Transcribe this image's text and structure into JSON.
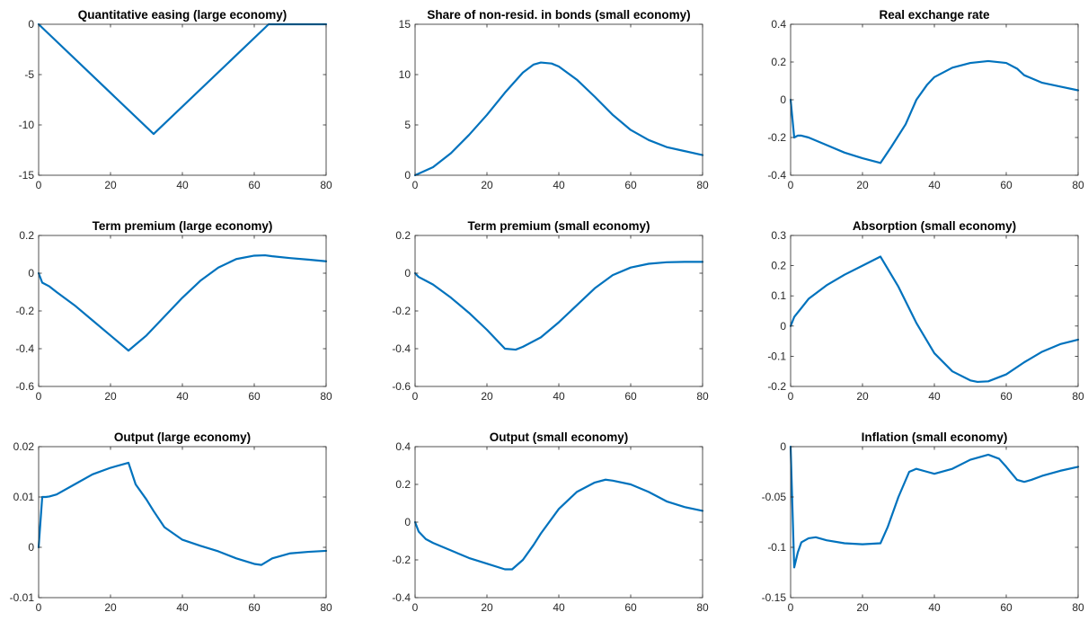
{
  "figure": {
    "line_color": "#0072BD",
    "grid": false,
    "layout": "3x3"
  },
  "chart_data": [
    {
      "type": "line",
      "title": "Quantitative easing (large economy)",
      "xlim": [
        0,
        80
      ],
      "ylim": [
        -15,
        0
      ],
      "xticks": [
        0,
        20,
        40,
        60,
        80
      ],
      "yticks": [
        -15,
        -10,
        -5,
        0
      ],
      "series": [
        {
          "x": [
            0,
            32,
            64,
            80
          ],
          "y": [
            0,
            -10.9,
            0,
            0
          ]
        }
      ]
    },
    {
      "type": "line",
      "title": "Share of non-resid. in bonds (small economy)",
      "xlim": [
        0,
        80
      ],
      "ylim": [
        0,
        15
      ],
      "xticks": [
        0,
        20,
        40,
        60,
        80
      ],
      "yticks": [
        0,
        5,
        10,
        15
      ],
      "series": [
        {
          "x": [
            0,
            5,
            10,
            15,
            20,
            25,
            30,
            33,
            35,
            38,
            40,
            45,
            50,
            55,
            60,
            65,
            70,
            75,
            80
          ],
          "y": [
            0,
            0.8,
            2.2,
            4.0,
            6.0,
            8.2,
            10.2,
            11.0,
            11.2,
            11.1,
            10.8,
            9.5,
            7.8,
            6.0,
            4.5,
            3.5,
            2.8,
            2.4,
            2.0
          ]
        }
      ]
    },
    {
      "type": "line",
      "title": "Real exchange rate",
      "xlim": [
        0,
        80
      ],
      "ylim": [
        -0.4,
        0.4
      ],
      "xticks": [
        0,
        20,
        40,
        60,
        80
      ],
      "yticks": [
        -0.4,
        -0.2,
        0,
        0.2,
        0.4
      ],
      "series": [
        {
          "x": [
            0,
            1,
            2,
            3,
            5,
            10,
            15,
            20,
            25,
            28,
            32,
            35,
            38,
            40,
            45,
            50,
            55,
            60,
            63,
            65,
            70,
            75,
            80
          ],
          "y": [
            0,
            -0.2,
            -0.19,
            -0.19,
            -0.2,
            -0.24,
            -0.28,
            -0.31,
            -0.335,
            -0.25,
            -0.13,
            0.0,
            0.08,
            0.12,
            0.17,
            0.195,
            0.205,
            0.195,
            0.165,
            0.13,
            0.09,
            0.07,
            0.05
          ]
        }
      ]
    },
    {
      "type": "line",
      "title": "Term premium (large economy)",
      "xlim": [
        0,
        80
      ],
      "ylim": [
        -0.6,
        0.2
      ],
      "xticks": [
        0,
        20,
        40,
        60,
        80
      ],
      "yticks": [
        -0.6,
        -0.4,
        -0.2,
        0,
        0.2
      ],
      "series": [
        {
          "x": [
            0,
            1,
            3,
            5,
            10,
            15,
            20,
            25,
            30,
            35,
            40,
            45,
            50,
            55,
            60,
            63,
            65,
            70,
            75,
            80
          ],
          "y": [
            0,
            -0.05,
            -0.07,
            -0.1,
            -0.17,
            -0.25,
            -0.33,
            -0.41,
            -0.33,
            -0.23,
            -0.13,
            -0.04,
            0.03,
            0.075,
            0.093,
            0.095,
            0.09,
            0.08,
            0.072,
            0.063
          ]
        }
      ]
    },
    {
      "type": "line",
      "title": "Term premium (small economy)",
      "xlim": [
        0,
        80
      ],
      "ylim": [
        -0.6,
        0.2
      ],
      "xticks": [
        0,
        20,
        40,
        60,
        80
      ],
      "yticks": [
        -0.6,
        -0.4,
        -0.2,
        0,
        0.2
      ],
      "series": [
        {
          "x": [
            0,
            1,
            3,
            5,
            10,
            15,
            20,
            25,
            28,
            30,
            35,
            40,
            45,
            50,
            55,
            60,
            65,
            70,
            75,
            80
          ],
          "y": [
            0,
            -0.02,
            -0.04,
            -0.06,
            -0.13,
            -0.21,
            -0.3,
            -0.4,
            -0.405,
            -0.39,
            -0.34,
            -0.26,
            -0.17,
            -0.08,
            -0.01,
            0.03,
            0.05,
            0.058,
            0.06,
            0.06
          ]
        }
      ]
    },
    {
      "type": "line",
      "title": "Absorption (small economy)",
      "xlim": [
        0,
        80
      ],
      "ylim": [
        -0.2,
        0.3
      ],
      "xticks": [
        0,
        20,
        40,
        60,
        80
      ],
      "yticks": [
        -0.2,
        -0.1,
        0,
        0.1,
        0.2,
        0.3
      ],
      "series": [
        {
          "x": [
            0,
            1,
            3,
            5,
            10,
            15,
            20,
            25,
            30,
            35,
            40,
            45,
            50,
            52,
            55,
            60,
            65,
            70,
            75,
            80
          ],
          "y": [
            0,
            0.03,
            0.06,
            0.09,
            0.135,
            0.17,
            0.2,
            0.23,
            0.13,
            0.01,
            -0.09,
            -0.15,
            -0.18,
            -0.185,
            -0.183,
            -0.16,
            -0.12,
            -0.085,
            -0.06,
            -0.045
          ]
        }
      ]
    },
    {
      "type": "line",
      "title": "Output (large economy)",
      "xlim": [
        0,
        80
      ],
      "ylim": [
        -0.01,
        0.02
      ],
      "xticks": [
        0,
        20,
        40,
        60,
        80
      ],
      "yticks": [
        -0.01,
        0,
        0.01,
        0.02
      ],
      "series": [
        {
          "x": [
            0,
            1,
            2,
            3,
            5,
            10,
            15,
            20,
            25,
            27,
            30,
            32,
            35,
            40,
            45,
            50,
            55,
            60,
            62,
            65,
            70,
            75,
            80
          ],
          "y": [
            0,
            0.01,
            0.01,
            0.0101,
            0.0105,
            0.0125,
            0.0145,
            0.0158,
            0.0168,
            0.0125,
            0.0095,
            0.0072,
            0.004,
            0.0015,
            0.0003,
            -0.0008,
            -0.0022,
            -0.0033,
            -0.0035,
            -0.0022,
            -0.0012,
            -0.0009,
            -0.0007
          ]
        }
      ]
    },
    {
      "type": "line",
      "title": "Output (small economy)",
      "xlim": [
        0,
        80
      ],
      "ylim": [
        -0.4,
        0.4
      ],
      "xticks": [
        0,
        20,
        40,
        60,
        80
      ],
      "yticks": [
        -0.4,
        -0.2,
        0,
        0.2,
        0.4
      ],
      "series": [
        {
          "x": [
            0,
            1,
            3,
            5,
            10,
            15,
            20,
            25,
            27,
            30,
            33,
            35,
            40,
            45,
            50,
            53,
            55,
            60,
            65,
            70,
            75,
            80
          ],
          "y": [
            0,
            -0.05,
            -0.09,
            -0.11,
            -0.15,
            -0.19,
            -0.22,
            -0.25,
            -0.25,
            -0.2,
            -0.12,
            -0.06,
            0.07,
            0.16,
            0.21,
            0.225,
            0.22,
            0.2,
            0.16,
            0.11,
            0.08,
            0.06
          ]
        }
      ]
    },
    {
      "type": "line",
      "title": "Inflation (small economy)",
      "xlim": [
        0,
        80
      ],
      "ylim": [
        -0.15,
        0
      ],
      "xticks": [
        0,
        20,
        40,
        60,
        80
      ],
      "yticks": [
        -0.15,
        -0.1,
        -0.05,
        0
      ],
      "series": [
        {
          "x": [
            0,
            1,
            2,
            3,
            5,
            7,
            10,
            15,
            20,
            25,
            27,
            30,
            33,
            35,
            38,
            40,
            45,
            50,
            55,
            58,
            60,
            63,
            65,
            67,
            70,
            75,
            80
          ],
          "y": [
            0,
            -0.12,
            -0.105,
            -0.095,
            -0.091,
            -0.09,
            -0.093,
            -0.096,
            -0.097,
            -0.096,
            -0.08,
            -0.05,
            -0.025,
            -0.022,
            -0.025,
            -0.027,
            -0.022,
            -0.013,
            -0.008,
            -0.012,
            -0.02,
            -0.033,
            -0.035,
            -0.033,
            -0.029,
            -0.024,
            -0.02
          ]
        }
      ]
    }
  ]
}
